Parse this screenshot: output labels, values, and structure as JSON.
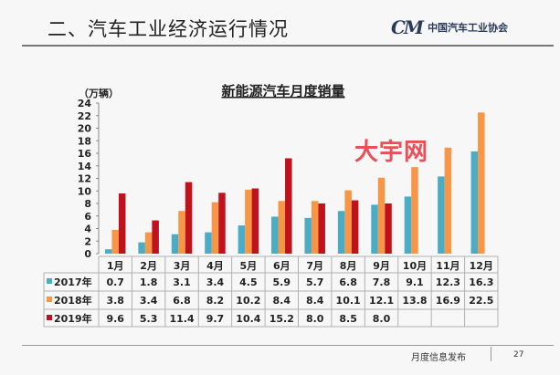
{
  "header": {
    "title": "二、汽车工业经济运行情况",
    "logo_text": "中国汽车工业协会",
    "logo_mark": "CM"
  },
  "watermark": "大宇网",
  "footer": {
    "label": "月度信息发布",
    "page": "27"
  },
  "chart_data": {
    "type": "bar",
    "title": "新能源汽车月度销量",
    "ylabel": "（万辆）",
    "ylim": [
      0,
      24
    ],
    "yticks": [
      0,
      2,
      4,
      6,
      8,
      10,
      12,
      14,
      16,
      18,
      20,
      22,
      24
    ],
    "categories": [
      "1月",
      "2月",
      "3月",
      "4月",
      "5月",
      "6月",
      "7月",
      "8月",
      "9月",
      "10月",
      "11月",
      "12月"
    ],
    "series": [
      {
        "name": "2017年",
        "color": "#4bacc6",
        "values": [
          0.7,
          1.8,
          3.1,
          3.4,
          4.5,
          5.9,
          5.7,
          6.8,
          7.8,
          9.1,
          12.3,
          16.3
        ]
      },
      {
        "name": "2018年",
        "color": "#f79646",
        "values": [
          3.8,
          3.4,
          6.8,
          8.2,
          10.2,
          8.4,
          8.4,
          10.1,
          12.1,
          13.8,
          16.9,
          22.5
        ]
      },
      {
        "name": "2019年",
        "color": "#c0121c",
        "values": [
          9.6,
          5.3,
          11.4,
          9.7,
          10.4,
          15.2,
          8.0,
          8.5,
          8.0,
          null,
          null,
          null
        ]
      }
    ],
    "data_table": true,
    "grid": false
  }
}
